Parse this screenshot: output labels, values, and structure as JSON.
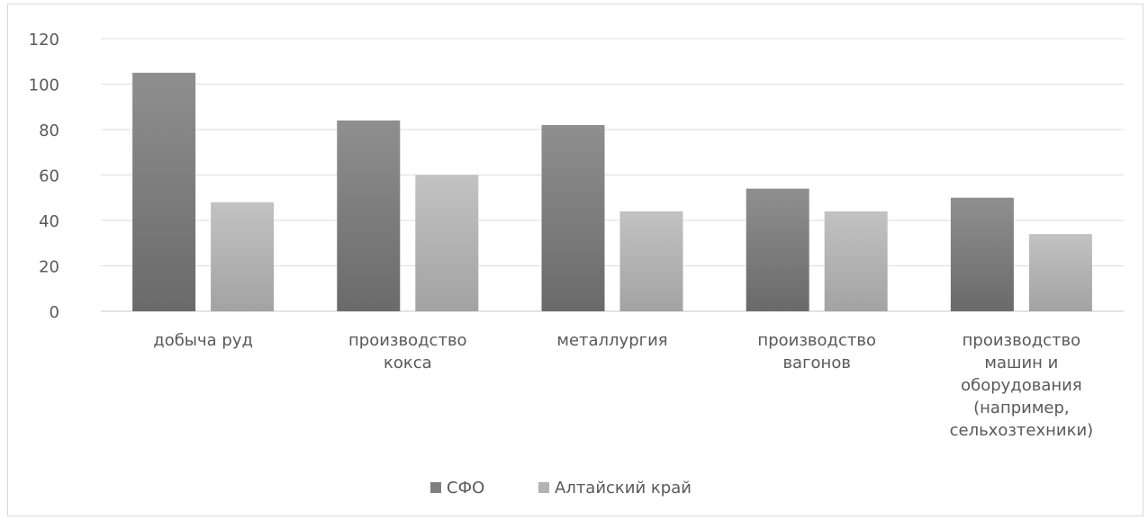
{
  "chart_data": {
    "type": "bar",
    "categories": [
      [
        "добыча руд"
      ],
      [
        "производство",
        "кокса"
      ],
      [
        "металлургия"
      ],
      [
        "производство",
        "вагонов"
      ],
      [
        "производство",
        "машин и",
        "оборудования",
        "(например,",
        "сельхозтехники)"
      ]
    ],
    "series": [
      {
        "name": "СФО",
        "values": [
          105,
          84,
          82,
          54,
          50
        ],
        "color": "#7f7f7f"
      },
      {
        "name": "Алтайский край",
        "values": [
          48,
          60,
          44,
          44,
          34
        ],
        "color": "#b3b3b3"
      }
    ],
    "ylim": [
      0,
      120
    ],
    "yticks": [
      0,
      20,
      40,
      60,
      80,
      100,
      120
    ],
    "grid": true,
    "legend_position": "bottom"
  }
}
